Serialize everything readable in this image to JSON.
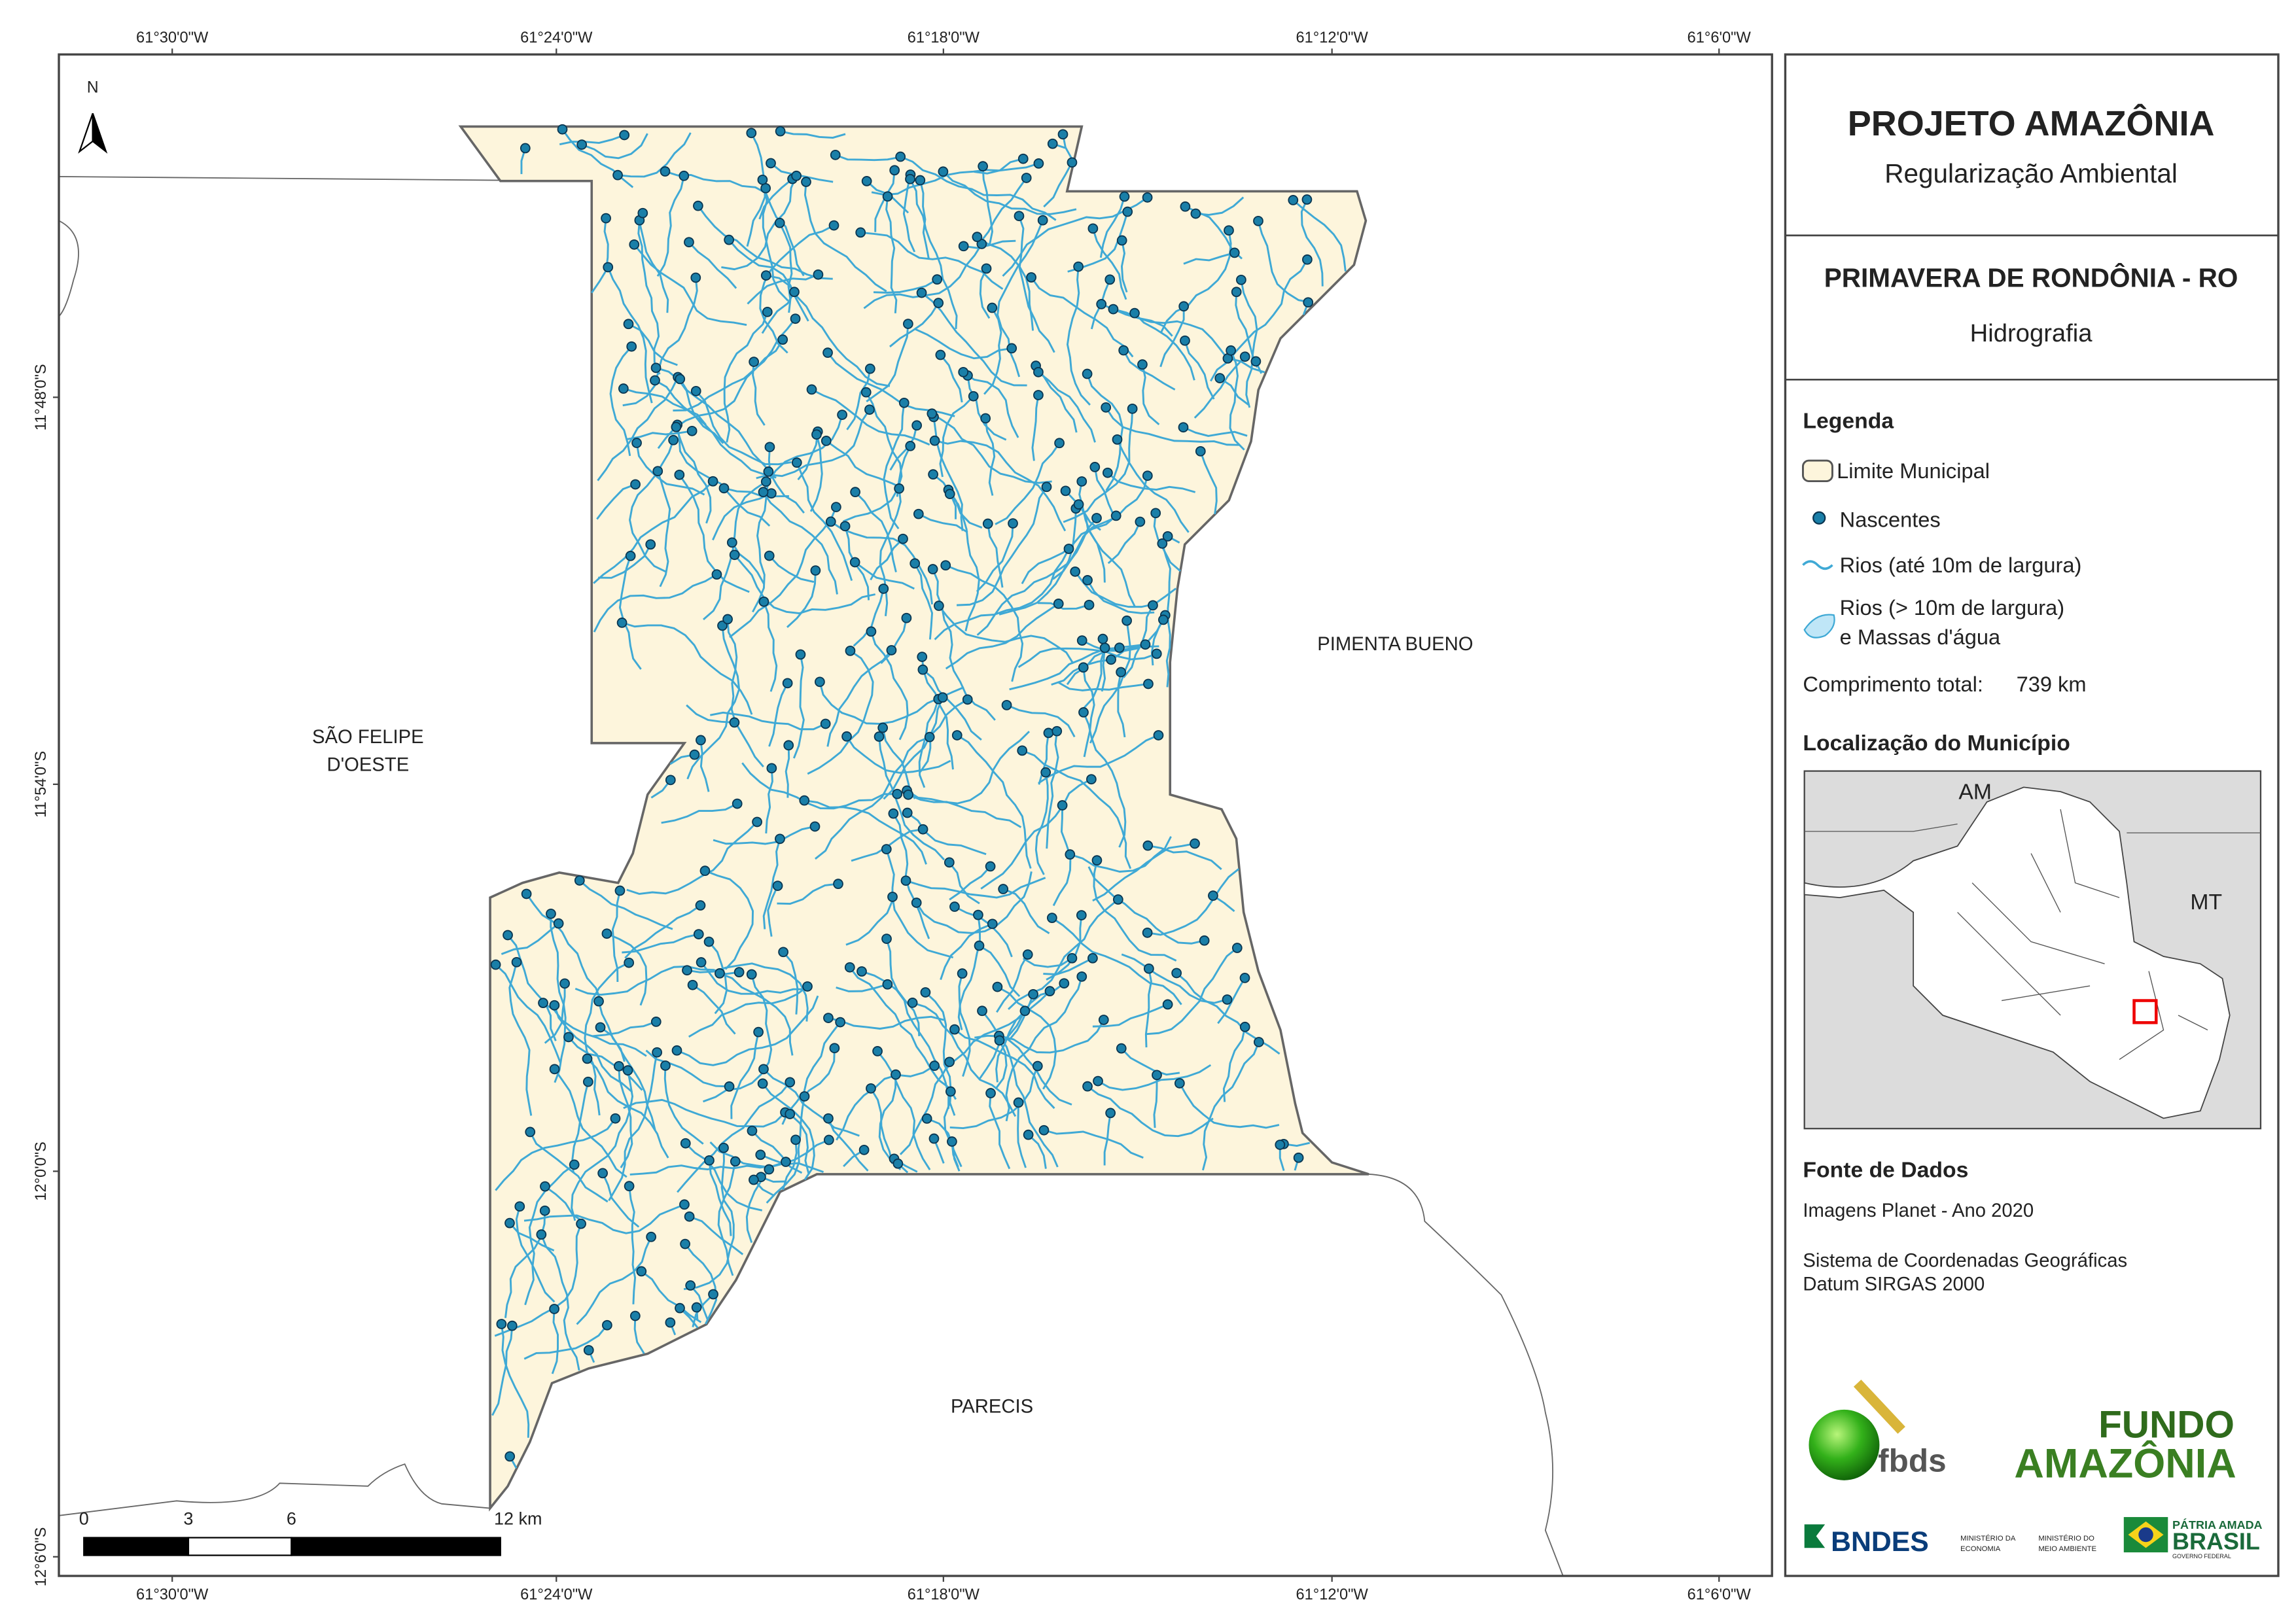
{
  "grid_labels": {
    "longitude": [
      "61°30'0\"W",
      "61°24'0\"W",
      "61°18'0\"W",
      "61°12'0\"W",
      "61°6'0\"W"
    ],
    "latitude": [
      "11°48'0\"S",
      "11°54'0\"S",
      "12°0'0\"S",
      "12°6'0\"S"
    ]
  },
  "places": [
    {
      "lines": [
        "SÃO FELIPE",
        "D'OESTE"
      ]
    },
    {
      "lines": [
        "PIMENTA BUENO"
      ]
    },
    {
      "lines": [
        "PARECIS"
      ]
    }
  ],
  "north": "N",
  "scale_bar": {
    "labels": [
      "0",
      "3",
      "6",
      "12 km"
    ]
  },
  "header": {
    "title": "PROJETO AMAZÔNIA",
    "subtitle": "Regularização Ambiental"
  },
  "municipality": {
    "name": "PRIMAVERA DE RONDÔNIA - RO",
    "theme": "Hidrografia"
  },
  "legend": {
    "title": "Legenda",
    "items": [
      {
        "lines": [
          "Limite Municipal"
        ]
      },
      {
        "lines": [
          "Nascentes"
        ]
      },
      {
        "lines": [
          "Rios (até 10m de largura)"
        ]
      },
      {
        "lines": [
          "Rios (> 10m de largura)",
          "e Massas d'água"
        ]
      }
    ]
  },
  "total_length": {
    "label": "Comprimento total:",
    "value": "739 km"
  },
  "location": {
    "title": "Localização do Município",
    "labels": [
      "AM",
      "MT"
    ]
  },
  "sources": {
    "title": "Fonte de Dados",
    "lines": [
      "Imagens Planet - Ano 2020",
      "Sistema de Coordenadas Geográficas",
      "Datum SIRGAS 2000"
    ]
  },
  "logos": {
    "fbds": "fbds",
    "fundo": [
      "FUNDO",
      "AMAZÔNIA"
    ],
    "bndes": "BNDES",
    "ministries": [
      "MINISTÉRIO DA",
      "ECONOMIA",
      "MINISTÉRIO DO",
      "MEIO AMBIENTE"
    ],
    "brasil": [
      "PÁTRIA AMADA",
      "BRASIL",
      "GOVERNO FEDERAL"
    ]
  }
}
